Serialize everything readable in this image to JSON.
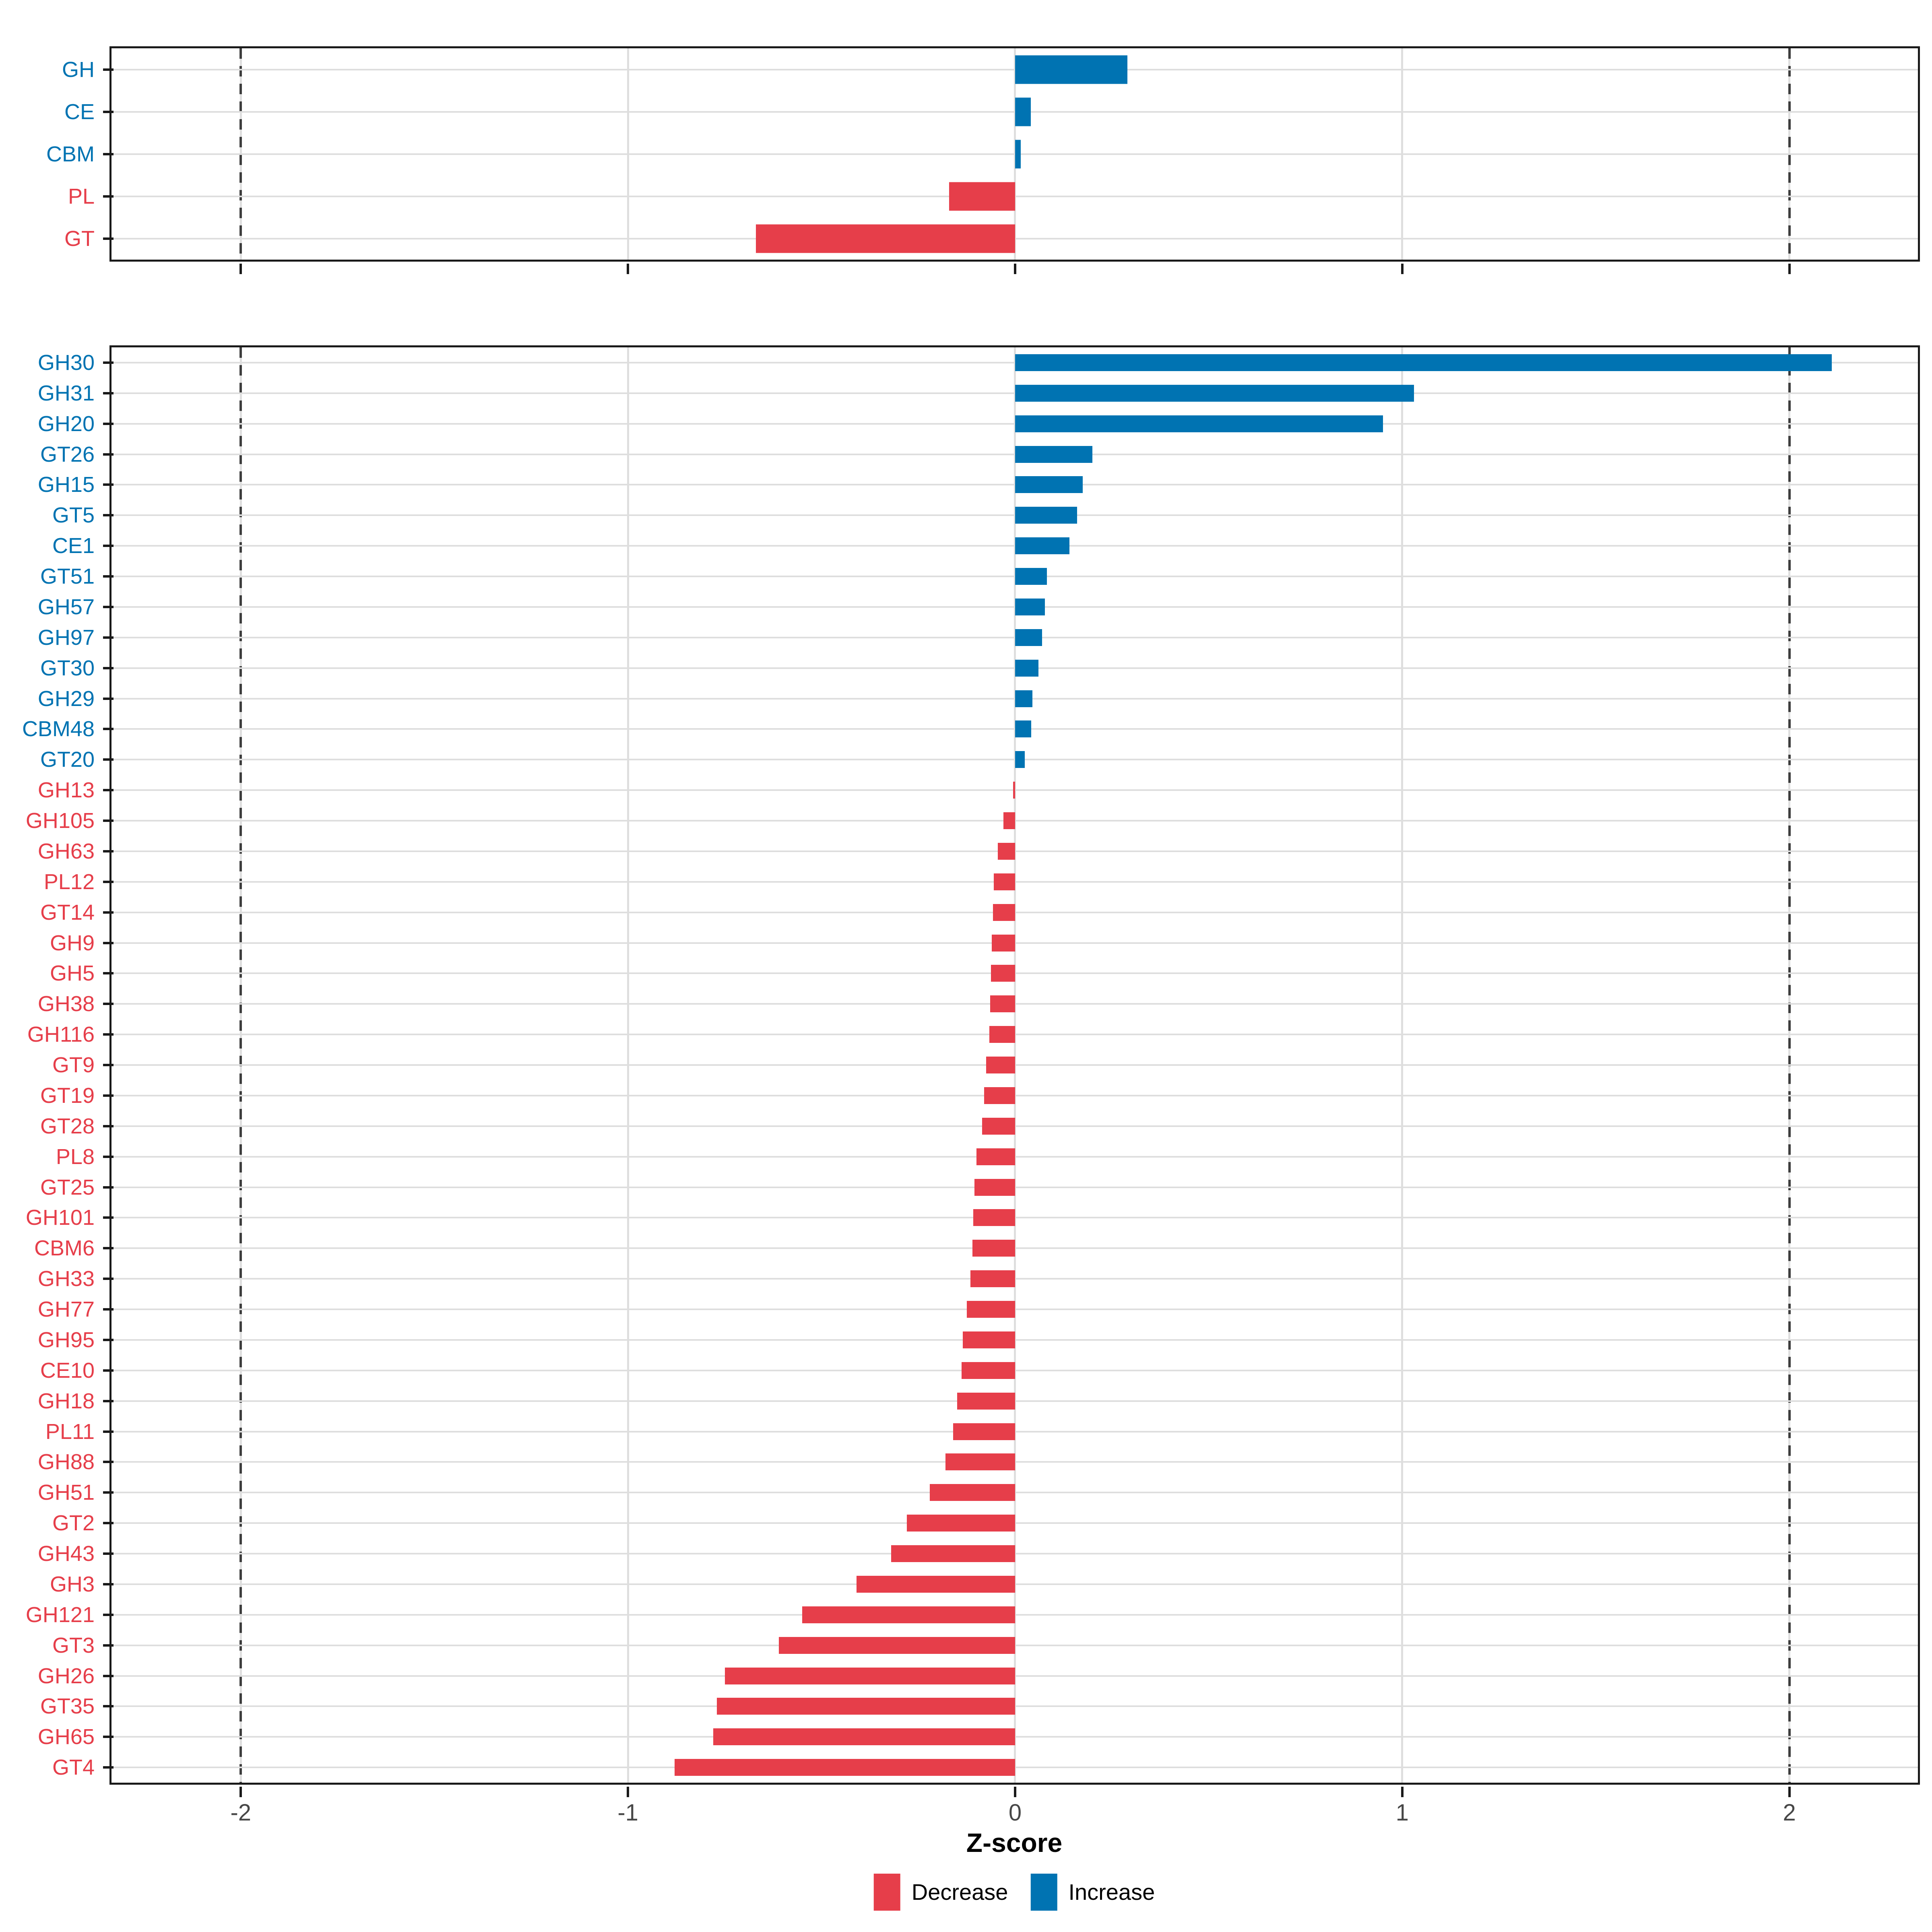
{
  "figure": {
    "xlabel": "Z-score",
    "colors": {
      "increase": "#0073B2",
      "decrease": "#E63E4A"
    },
    "legend": [
      {
        "label": "Decrease",
        "color": "#E63E4A"
      },
      {
        "label": "Increase",
        "color": "#0073B2"
      }
    ],
    "axis": {
      "xmin": -2.334,
      "xmax": 2.332,
      "ticks": [
        -2,
        -1,
        0,
        1,
        2
      ],
      "dashed_lines": [
        -2,
        2
      ],
      "grid": "on"
    }
  },
  "chart_data": [
    {
      "type": "bar",
      "orientation": "horizontal",
      "panel": "cazyme-class-summary",
      "title": "",
      "xlabel": "Z-score",
      "ylabel": "",
      "show_x_tick_labels": false,
      "categories": [
        "GH",
        "CE",
        "CBM",
        "PL",
        "GT"
      ],
      "values": [
        0.29,
        0.041,
        0.015,
        -0.17,
        -0.67
      ]
    },
    {
      "type": "bar",
      "orientation": "horizontal",
      "panel": "cazyme-family-detail",
      "title": "",
      "xlabel": "Z-score",
      "ylabel": "",
      "show_x_tick_labels": true,
      "categories": [
        "GH30",
        "GH31",
        "GH20",
        "GT26",
        "GH15",
        "GT5",
        "CE1",
        "GT51",
        "GH57",
        "GH97",
        "GT30",
        "GH29",
        "CBM48",
        "GT20",
        "GH13",
        "GH105",
        "GH63",
        "PL12",
        "GT14",
        "GH9",
        "GH5",
        "GH38",
        "GH116",
        "GT9",
        "GT19",
        "GT28",
        "PL8",
        "GT25",
        "GH101",
        "CBM6",
        "GH33",
        "GH77",
        "GH95",
        "CE10",
        "GH18",
        "PL11",
        "GH88",
        "GH51",
        "GT2",
        "GH43",
        "GH3",
        "GH121",
        "GT3",
        "GH26",
        "GT35",
        "GH65",
        "GT4"
      ],
      "values": [
        2.11,
        1.03,
        0.95,
        0.2,
        0.175,
        0.16,
        0.14,
        0.082,
        0.077,
        0.07,
        0.06,
        0.045,
        0.042,
        0.025,
        -0.005,
        -0.03,
        -0.045,
        -0.055,
        -0.057,
        -0.06,
        -0.062,
        -0.064,
        -0.066,
        -0.075,
        -0.08,
        -0.085,
        -0.1,
        -0.105,
        -0.108,
        -0.11,
        -0.115,
        -0.125,
        -0.135,
        -0.138,
        -0.15,
        -0.16,
        -0.18,
        -0.22,
        -0.28,
        -0.32,
        -0.41,
        -0.55,
        -0.61,
        -0.75,
        -0.77,
        -0.78,
        -0.88
      ]
    }
  ]
}
